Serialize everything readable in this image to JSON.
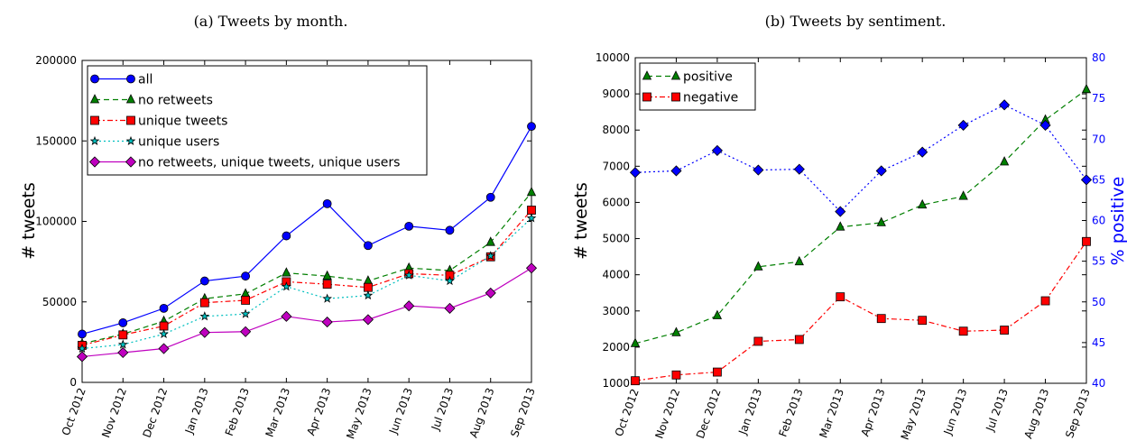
{
  "chart_data": [
    {
      "type": "line",
      "title": "(a) Tweets by month.",
      "xlabel": "",
      "ylabel": "# tweets",
      "ylim": [
        0,
        200000
      ],
      "yticks": [
        "0",
        "50000",
        "100000",
        "150000",
        "200000"
      ],
      "categories": [
        "Oct 2012",
        "Nov 2012",
        "Dec 2012",
        "Jan 2013",
        "Feb 2013",
        "Mar 2013",
        "Apr 2013",
        "May 2013",
        "Jun 2013",
        "Jul 2013",
        "Aug 2013",
        "Sep 2013"
      ],
      "grid": false,
      "legend_position": "top-left",
      "series": [
        {
          "name": "all",
          "color": "#0000ff",
          "marker": "circle",
          "dash": "solid",
          "values": [
            30000,
            37000,
            46000,
            63000,
            66000,
            91000,
            111000,
            85000,
            97000,
            94500,
            115000,
            159000
          ]
        },
        {
          "name": "no retweets",
          "color": "#007f00",
          "marker": "triangle",
          "dash": "dashed",
          "values": [
            24000,
            30000,
            38000,
            52000,
            55000,
            68000,
            66000,
            63000,
            71000,
            69500,
            87000,
            118000
          ]
        },
        {
          "name": "unique tweets",
          "color": "#ff0000",
          "marker": "square",
          "dash": "dashdot",
          "values": [
            23000,
            29500,
            35000,
            49500,
            51000,
            62500,
            61000,
            59000,
            67500,
            66500,
            78000,
            107000
          ]
        },
        {
          "name": "unique users",
          "color": "#00bfbf",
          "marker": "star",
          "dash": "dotted",
          "values": [
            21000,
            23500,
            30000,
            41000,
            42500,
            59500,
            52000,
            54000,
            66500,
            63000,
            78500,
            102000
          ]
        },
        {
          "name": "no retweets, unique tweets, unique users",
          "color": "#bf00bf",
          "marker": "diamond",
          "dash": "solid",
          "values": [
            16000,
            18500,
            21000,
            31000,
            31500,
            41000,
            37500,
            39000,
            47500,
            46000,
            55500,
            71000
          ]
        }
      ]
    },
    {
      "type": "line",
      "title": "(b) Tweets by sentiment.",
      "xlabel": "",
      "ylabel": "# tweets",
      "ylabel_right": "% positive",
      "ylim": [
        1000,
        10000
      ],
      "ylim_right": [
        40,
        80
      ],
      "yticks": [
        "1000",
        "2000",
        "3000",
        "4000",
        "5000",
        "6000",
        "7000",
        "8000",
        "9000",
        "10000"
      ],
      "yticks_right": [
        "40",
        "45",
        "50",
        "55",
        "60",
        "65",
        "70",
        "75",
        "80"
      ],
      "categories": [
        "Oct 2012",
        "Nov 2012",
        "Dec 2012",
        "Jan 2013",
        "Feb 2013",
        "Mar 2013",
        "Apr 2013",
        "May 2013",
        "Jun 2013",
        "Jul 2013",
        "Aug 2013",
        "Sep 2013"
      ],
      "grid": false,
      "legend_position": "top-left",
      "series": [
        {
          "name": "positive",
          "color": "#007f00",
          "marker": "triangle",
          "dash": "dashed",
          "axis": "left",
          "values": [
            2100,
            2400,
            2870,
            4220,
            4360,
            5320,
            5440,
            5930,
            6170,
            7120,
            8280,
            9120
          ]
        },
        {
          "name": "negative",
          "color": "#ff0000",
          "marker": "square",
          "dash": "dashdot",
          "axis": "left",
          "values": [
            1070,
            1230,
            1310,
            2160,
            2210,
            3390,
            2790,
            2740,
            2440,
            2470,
            3280,
            4920
          ]
        },
        {
          "name": "",
          "color": "#0000ff",
          "marker": "diamond",
          "dash": "dotted",
          "axis": "right",
          "values": [
            65.9,
            66.1,
            68.6,
            66.2,
            66.3,
            61.1,
            66.1,
            68.4,
            71.7,
            74.2,
            71.7,
            65.0
          ]
        }
      ]
    }
  ]
}
